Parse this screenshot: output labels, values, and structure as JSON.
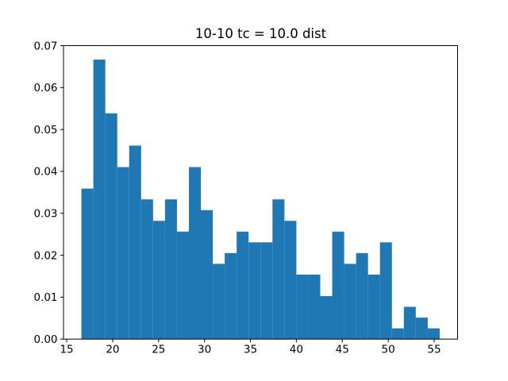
{
  "chart_data": {
    "type": "bar",
    "subtype": "histogram",
    "title": "10-10 tc = 10.0 dist",
    "xlabel": "",
    "ylabel": "",
    "grid": false,
    "legend": null,
    "bar_color": "#1f77b4",
    "axis_color": "#000000",
    "text_color": "#000000",
    "background_color": "#ffffff",
    "n_samples": 300,
    "n_bins": 30,
    "bin_start": 16.6,
    "bin_width": 1.3,
    "bin_end": 55.6,
    "normalization": "density",
    "counts": [
      14,
      26,
      21,
      16,
      18,
      13,
      11,
      13,
      10,
      16,
      12,
      7,
      8,
      10,
      9,
      9,
      13,
      11,
      6,
      6,
      4,
      10,
      7,
      8,
      6,
      9,
      1,
      3,
      2,
      1
    ],
    "densities": [
      0.035897,
      0.066667,
      0.053846,
      0.041026,
      0.046154,
      0.033333,
      0.028205,
      0.033333,
      0.025641,
      0.041026,
      0.030769,
      0.017949,
      0.020513,
      0.025641,
      0.023077,
      0.023077,
      0.033333,
      0.028205,
      0.015385,
      0.015385,
      0.010256,
      0.025641,
      0.017949,
      0.020513,
      0.015385,
      0.023077,
      0.002564,
      0.007692,
      0.005128,
      0.002564
    ],
    "xlim": [
      14.65,
      57.55
    ],
    "ylim": [
      0,
      0.07
    ],
    "xticks": [
      15,
      20,
      25,
      30,
      35,
      40,
      45,
      50,
      55
    ],
    "xtick_labels": [
      "15",
      "20",
      "25",
      "30",
      "35",
      "40",
      "45",
      "50",
      "55"
    ],
    "yticks": [
      0,
      0.01,
      0.02,
      0.03,
      0.04,
      0.05,
      0.06,
      0.07
    ],
    "ytick_labels": [
      "0.00",
      "0.01",
      "0.02",
      "0.03",
      "0.04",
      "0.05",
      "0.06",
      "0.07"
    ]
  }
}
